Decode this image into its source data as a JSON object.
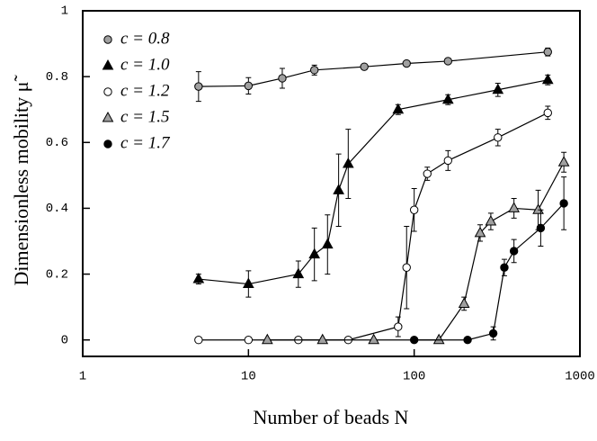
{
  "chart_data": {
    "type": "line",
    "xlabel": "Number of beads N",
    "ylabel": "Dimensionless mobility μ̃",
    "xscale": "log",
    "xlim": [
      1,
      1000
    ],
    "xticks": [
      1,
      10,
      100,
      1000
    ],
    "ylim": [
      -0.05,
      1
    ],
    "yticks": [
      0,
      0.2,
      0.4,
      0.6,
      0.8,
      1
    ],
    "legend": "upper left",
    "series": [
      {
        "name": "c = 0.8",
        "color": "#a0a0a0",
        "marker": "circle",
        "x": [
          5,
          10,
          16,
          25,
          50,
          90,
          160,
          640
        ],
        "values": [
          0.77,
          0.772,
          0.795,
          0.82,
          0.83,
          0.84,
          0.847,
          0.875
        ],
        "errors": [
          0.045,
          0.025,
          0.03,
          0.015,
          0.008,
          0.008,
          0.008,
          0.012
        ]
      },
      {
        "name": "c = 1.0",
        "color": "#000000",
        "marker": "triangle",
        "x": [
          5,
          10,
          20,
          25,
          30,
          35,
          40,
          80,
          160,
          320,
          640
        ],
        "values": [
          0.185,
          0.17,
          0.2,
          0.26,
          0.29,
          0.455,
          0.535,
          0.7,
          0.73,
          0.76,
          0.79
        ],
        "errors": [
          0.015,
          0.04,
          0.04,
          0.08,
          0.09,
          0.11,
          0.105,
          0.015,
          0.015,
          0.02,
          0.015
        ]
      },
      {
        "name": "c = 1.2",
        "color": "#ffffff",
        "marker": "circle",
        "x": [
          5,
          10,
          20,
          40,
          80,
          90,
          100,
          120,
          160,
          320,
          640
        ],
        "values": [
          0,
          0,
          0,
          0,
          0.04,
          0.22,
          0.395,
          0.505,
          0.545,
          0.615,
          0.69
        ],
        "errors": [
          0,
          0,
          0,
          0,
          0.03,
          0.125,
          0.065,
          0.02,
          0.03,
          0.025,
          0.02
        ]
      },
      {
        "name": "c = 1.5",
        "color": "#a0a0a0",
        "marker": "triangle",
        "x": [
          13,
          28,
          57,
          141,
          200,
          250,
          290,
          400,
          560,
          800
        ],
        "values": [
          0,
          0,
          0,
          0,
          0.11,
          0.325,
          0.36,
          0.4,
          0.395,
          0.54
        ],
        "errors": [
          0,
          0,
          0,
          0,
          0.02,
          0.025,
          0.025,
          0.03,
          0.06,
          0.03
        ]
      },
      {
        "name": "c = 1.7",
        "color": "#000000",
        "marker": "circle",
        "x": [
          100,
          210,
          300,
          350,
          400,
          580,
          800
        ],
        "values": [
          0,
          0,
          0.02,
          0.22,
          0.27,
          0.34,
          0.415
        ],
        "errors": [
          0,
          0,
          0.02,
          0.025,
          0.035,
          0.055,
          0.08
        ]
      }
    ]
  }
}
